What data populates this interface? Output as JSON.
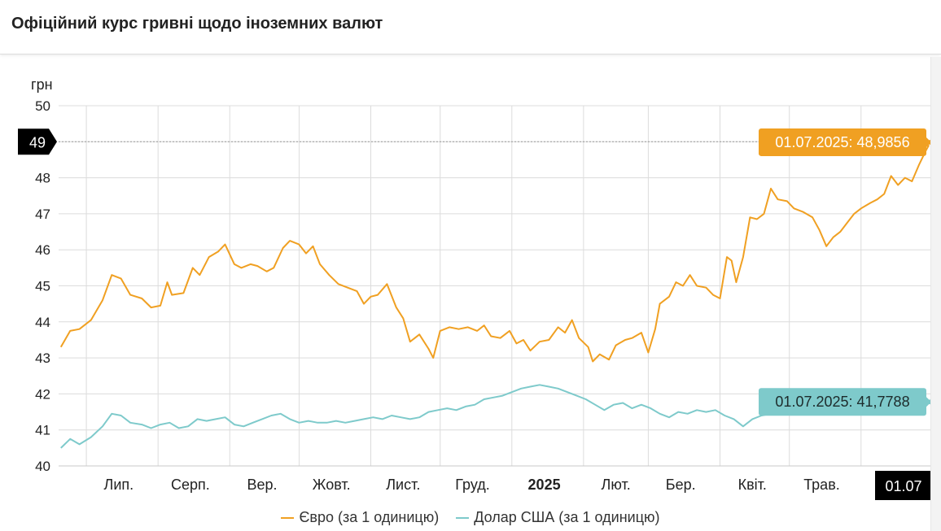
{
  "header": {
    "title": "Офіційний курс гривні щодо іноземних валют"
  },
  "colors": {
    "eur": "#f0a022",
    "usd": "#7ecacb",
    "grid": "#dcdcdc",
    "flag_bg": "#000000"
  },
  "chart_data": {
    "type": "line",
    "ylabel": "грн",
    "ylim": [
      40,
      50
    ],
    "y_ticks": [
      40,
      41,
      42,
      43,
      44,
      45,
      46,
      47,
      48,
      49,
      50
    ],
    "month_labels": [
      {
        "label": "Лип.",
        "date": "2024-07-15",
        "bold": false
      },
      {
        "label": "Серп.",
        "date": "2024-08-15",
        "bold": false
      },
      {
        "label": "Вер.",
        "date": "2024-09-15",
        "bold": false
      },
      {
        "label": "Жовт.",
        "date": "2024-10-15",
        "bold": false
      },
      {
        "label": "Лист.",
        "date": "2024-11-15",
        "bold": false
      },
      {
        "label": "Груд.",
        "date": "2024-12-15",
        "bold": false
      },
      {
        "label": "2025",
        "date": "2025-01-15",
        "bold": true
      },
      {
        "label": "Лют.",
        "date": "2025-02-15",
        "bold": false
      },
      {
        "label": "Бер.",
        "date": "2025-03-15",
        "bold": false
      },
      {
        "label": "Квіт.",
        "date": "2025-04-15",
        "bold": false
      },
      {
        "label": "Трав.",
        "date": "2025-05-15",
        "bold": false
      }
    ],
    "crosshair": {
      "y_label": "49",
      "x_label": "01.07"
    },
    "series": [
      {
        "name": "Євро (за 1 одиницю)",
        "key": "eur",
        "last_label": "01.07.2025: 48,9856",
        "points": [
          [
            "2024-06-20",
            43.3
          ],
          [
            "2024-06-24",
            43.75
          ],
          [
            "2024-06-28",
            43.8
          ],
          [
            "2024-07-03",
            44.05
          ],
          [
            "2024-07-08",
            44.6
          ],
          [
            "2024-07-12",
            45.3
          ],
          [
            "2024-07-16",
            45.2
          ],
          [
            "2024-07-20",
            44.75
          ],
          [
            "2024-07-25",
            44.65
          ],
          [
            "2024-07-29",
            44.4
          ],
          [
            "2024-08-02",
            44.45
          ],
          [
            "2024-08-05",
            45.1
          ],
          [
            "2024-08-07",
            44.75
          ],
          [
            "2024-08-12",
            44.8
          ],
          [
            "2024-08-16",
            45.5
          ],
          [
            "2024-08-19",
            45.3
          ],
          [
            "2024-08-23",
            45.8
          ],
          [
            "2024-08-27",
            45.95
          ],
          [
            "2024-08-30",
            46.15
          ],
          [
            "2024-09-03",
            45.6
          ],
          [
            "2024-09-06",
            45.5
          ],
          [
            "2024-09-10",
            45.6
          ],
          [
            "2024-09-13",
            45.55
          ],
          [
            "2024-09-17",
            45.4
          ],
          [
            "2024-09-20",
            45.5
          ],
          [
            "2024-09-24",
            46.05
          ],
          [
            "2024-09-27",
            46.25
          ],
          [
            "2024-10-01",
            46.15
          ],
          [
            "2024-10-04",
            45.9
          ],
          [
            "2024-10-07",
            46.1
          ],
          [
            "2024-10-10",
            45.6
          ],
          [
            "2024-10-14",
            45.3
          ],
          [
            "2024-10-18",
            45.05
          ],
          [
            "2024-10-22",
            44.95
          ],
          [
            "2024-10-26",
            44.85
          ],
          [
            "2024-10-29",
            44.5
          ],
          [
            "2024-11-01",
            44.7
          ],
          [
            "2024-11-04",
            44.75
          ],
          [
            "2024-11-08",
            45.05
          ],
          [
            "2024-11-12",
            44.4
          ],
          [
            "2024-11-15",
            44.1
          ],
          [
            "2024-11-18",
            43.45
          ],
          [
            "2024-11-22",
            43.65
          ],
          [
            "2024-11-26",
            43.25
          ],
          [
            "2024-11-28",
            43.0
          ],
          [
            "2024-12-01",
            43.75
          ],
          [
            "2024-12-05",
            43.85
          ],
          [
            "2024-12-09",
            43.8
          ],
          [
            "2024-12-13",
            43.85
          ],
          [
            "2024-12-17",
            43.75
          ],
          [
            "2024-12-20",
            43.9
          ],
          [
            "2024-12-23",
            43.6
          ],
          [
            "2024-12-27",
            43.55
          ],
          [
            "2024-12-31",
            43.75
          ],
          [
            "2025-01-03",
            43.4
          ],
          [
            "2025-01-06",
            43.5
          ],
          [
            "2025-01-09",
            43.2
          ],
          [
            "2025-01-13",
            43.45
          ],
          [
            "2025-01-17",
            43.5
          ],
          [
            "2025-01-21",
            43.85
          ],
          [
            "2025-01-24",
            43.7
          ],
          [
            "2025-01-27",
            44.05
          ],
          [
            "2025-01-30",
            43.55
          ],
          [
            "2025-02-03",
            43.3
          ],
          [
            "2025-02-05",
            42.9
          ],
          [
            "2025-02-08",
            43.1
          ],
          [
            "2025-02-12",
            42.95
          ],
          [
            "2025-02-15",
            43.35
          ],
          [
            "2025-02-19",
            43.5
          ],
          [
            "2025-02-22",
            43.55
          ],
          [
            "2025-02-26",
            43.7
          ],
          [
            "2025-03-01",
            43.15
          ],
          [
            "2025-03-04",
            43.8
          ],
          [
            "2025-03-06",
            44.5
          ],
          [
            "2025-03-10",
            44.7
          ],
          [
            "2025-03-13",
            45.1
          ],
          [
            "2025-03-16",
            45.0
          ],
          [
            "2025-03-19",
            45.3
          ],
          [
            "2025-03-22",
            45.0
          ],
          [
            "2025-03-26",
            44.95
          ],
          [
            "2025-03-29",
            44.75
          ],
          [
            "2025-04-01",
            44.65
          ],
          [
            "2025-04-04",
            45.8
          ],
          [
            "2025-04-06",
            45.7
          ],
          [
            "2025-04-08",
            45.1
          ],
          [
            "2025-04-11",
            45.8
          ],
          [
            "2025-04-14",
            46.9
          ],
          [
            "2025-04-17",
            46.85
          ],
          [
            "2025-04-20",
            47.0
          ],
          [
            "2025-04-23",
            47.7
          ],
          [
            "2025-04-26",
            47.4
          ],
          [
            "2025-04-30",
            47.35
          ],
          [
            "2025-05-03",
            47.15
          ],
          [
            "2025-05-07",
            47.05
          ],
          [
            "2025-05-11",
            46.9
          ],
          [
            "2025-05-14",
            46.55
          ],
          [
            "2025-05-17",
            46.1
          ],
          [
            "2025-05-20",
            46.35
          ],
          [
            "2025-05-23",
            46.5
          ],
          [
            "2025-05-26",
            46.75
          ],
          [
            "2025-05-29",
            47.0
          ],
          [
            "2025-06-01",
            47.15
          ],
          [
            "2025-06-05",
            47.3
          ],
          [
            "2025-06-08",
            47.4
          ],
          [
            "2025-06-11",
            47.55
          ],
          [
            "2025-06-14",
            48.05
          ],
          [
            "2025-06-17",
            47.8
          ],
          [
            "2025-06-20",
            48.0
          ],
          [
            "2025-06-23",
            47.9
          ],
          [
            "2025-06-26",
            48.35
          ],
          [
            "2025-06-29",
            48.75
          ],
          [
            "2025-07-01",
            48.9856
          ]
        ]
      },
      {
        "name": "Долар США (за 1 одиницю)",
        "key": "usd",
        "last_label": "01.07.2025: 41,7788",
        "points": [
          [
            "2024-06-20",
            40.5
          ],
          [
            "2024-06-24",
            40.75
          ],
          [
            "2024-06-28",
            40.6
          ],
          [
            "2024-07-03",
            40.8
          ],
          [
            "2024-07-08",
            41.1
          ],
          [
            "2024-07-12",
            41.45
          ],
          [
            "2024-07-16",
            41.4
          ],
          [
            "2024-07-20",
            41.2
          ],
          [
            "2024-07-25",
            41.15
          ],
          [
            "2024-07-29",
            41.05
          ],
          [
            "2024-08-02",
            41.15
          ],
          [
            "2024-08-06",
            41.2
          ],
          [
            "2024-08-10",
            41.05
          ],
          [
            "2024-08-14",
            41.1
          ],
          [
            "2024-08-18",
            41.3
          ],
          [
            "2024-08-22",
            41.25
          ],
          [
            "2024-08-26",
            41.3
          ],
          [
            "2024-08-30",
            41.35
          ],
          [
            "2024-09-03",
            41.15
          ],
          [
            "2024-09-07",
            41.1
          ],
          [
            "2024-09-11",
            41.2
          ],
          [
            "2024-09-15",
            41.3
          ],
          [
            "2024-09-19",
            41.4
          ],
          [
            "2024-09-23",
            41.45
          ],
          [
            "2024-09-27",
            41.3
          ],
          [
            "2024-10-01",
            41.2
          ],
          [
            "2024-10-05",
            41.25
          ],
          [
            "2024-10-09",
            41.2
          ],
          [
            "2024-10-13",
            41.2
          ],
          [
            "2024-10-17",
            41.25
          ],
          [
            "2024-10-21",
            41.2
          ],
          [
            "2024-10-25",
            41.25
          ],
          [
            "2024-10-29",
            41.3
          ],
          [
            "2024-11-02",
            41.35
          ],
          [
            "2024-11-06",
            41.3
          ],
          [
            "2024-11-10",
            41.4
          ],
          [
            "2024-11-14",
            41.35
          ],
          [
            "2024-11-18",
            41.3
          ],
          [
            "2024-11-22",
            41.35
          ],
          [
            "2024-11-26",
            41.5
          ],
          [
            "2024-11-30",
            41.55
          ],
          [
            "2024-12-04",
            41.6
          ],
          [
            "2024-12-08",
            41.55
          ],
          [
            "2024-12-12",
            41.65
          ],
          [
            "2024-12-16",
            41.7
          ],
          [
            "2024-12-20",
            41.85
          ],
          [
            "2024-12-24",
            41.9
          ],
          [
            "2024-12-28",
            41.95
          ],
          [
            "2025-01-01",
            42.05
          ],
          [
            "2025-01-05",
            42.15
          ],
          [
            "2025-01-09",
            42.2
          ],
          [
            "2025-01-13",
            42.25
          ],
          [
            "2025-01-17",
            42.2
          ],
          [
            "2025-01-21",
            42.15
          ],
          [
            "2025-01-25",
            42.05
          ],
          [
            "2025-01-29",
            41.95
          ],
          [
            "2025-02-02",
            41.85
          ],
          [
            "2025-02-06",
            41.7
          ],
          [
            "2025-02-10",
            41.55
          ],
          [
            "2025-02-14",
            41.7
          ],
          [
            "2025-02-18",
            41.75
          ],
          [
            "2025-02-22",
            41.6
          ],
          [
            "2025-02-26",
            41.7
          ],
          [
            "2025-03-02",
            41.6
          ],
          [
            "2025-03-06",
            41.45
          ],
          [
            "2025-03-10",
            41.35
          ],
          [
            "2025-03-14",
            41.5
          ],
          [
            "2025-03-18",
            41.45
          ],
          [
            "2025-03-22",
            41.55
          ],
          [
            "2025-03-26",
            41.5
          ],
          [
            "2025-03-30",
            41.55
          ],
          [
            "2025-04-03",
            41.4
          ],
          [
            "2025-04-07",
            41.3
          ],
          [
            "2025-04-11",
            41.1
          ],
          [
            "2025-04-15",
            41.3
          ],
          [
            "2025-04-19",
            41.4
          ],
          [
            "2025-04-23",
            41.45
          ],
          [
            "2025-04-27",
            41.6
          ],
          [
            "2025-05-01",
            41.55
          ],
          [
            "2025-05-05",
            41.5
          ],
          [
            "2025-05-09",
            41.55
          ],
          [
            "2025-05-13",
            41.5
          ],
          [
            "2025-05-17",
            41.55
          ],
          [
            "2025-05-21",
            41.6
          ],
          [
            "2025-05-25",
            41.55
          ],
          [
            "2025-05-29",
            41.6
          ],
          [
            "2025-06-02",
            41.55
          ],
          [
            "2025-06-06",
            41.6
          ],
          [
            "2025-06-10",
            41.65
          ],
          [
            "2025-06-14",
            41.6
          ],
          [
            "2025-06-18",
            41.7
          ],
          [
            "2025-06-22",
            41.65
          ],
          [
            "2025-06-26",
            41.75
          ],
          [
            "2025-07-01",
            41.7788
          ]
        ]
      }
    ]
  }
}
